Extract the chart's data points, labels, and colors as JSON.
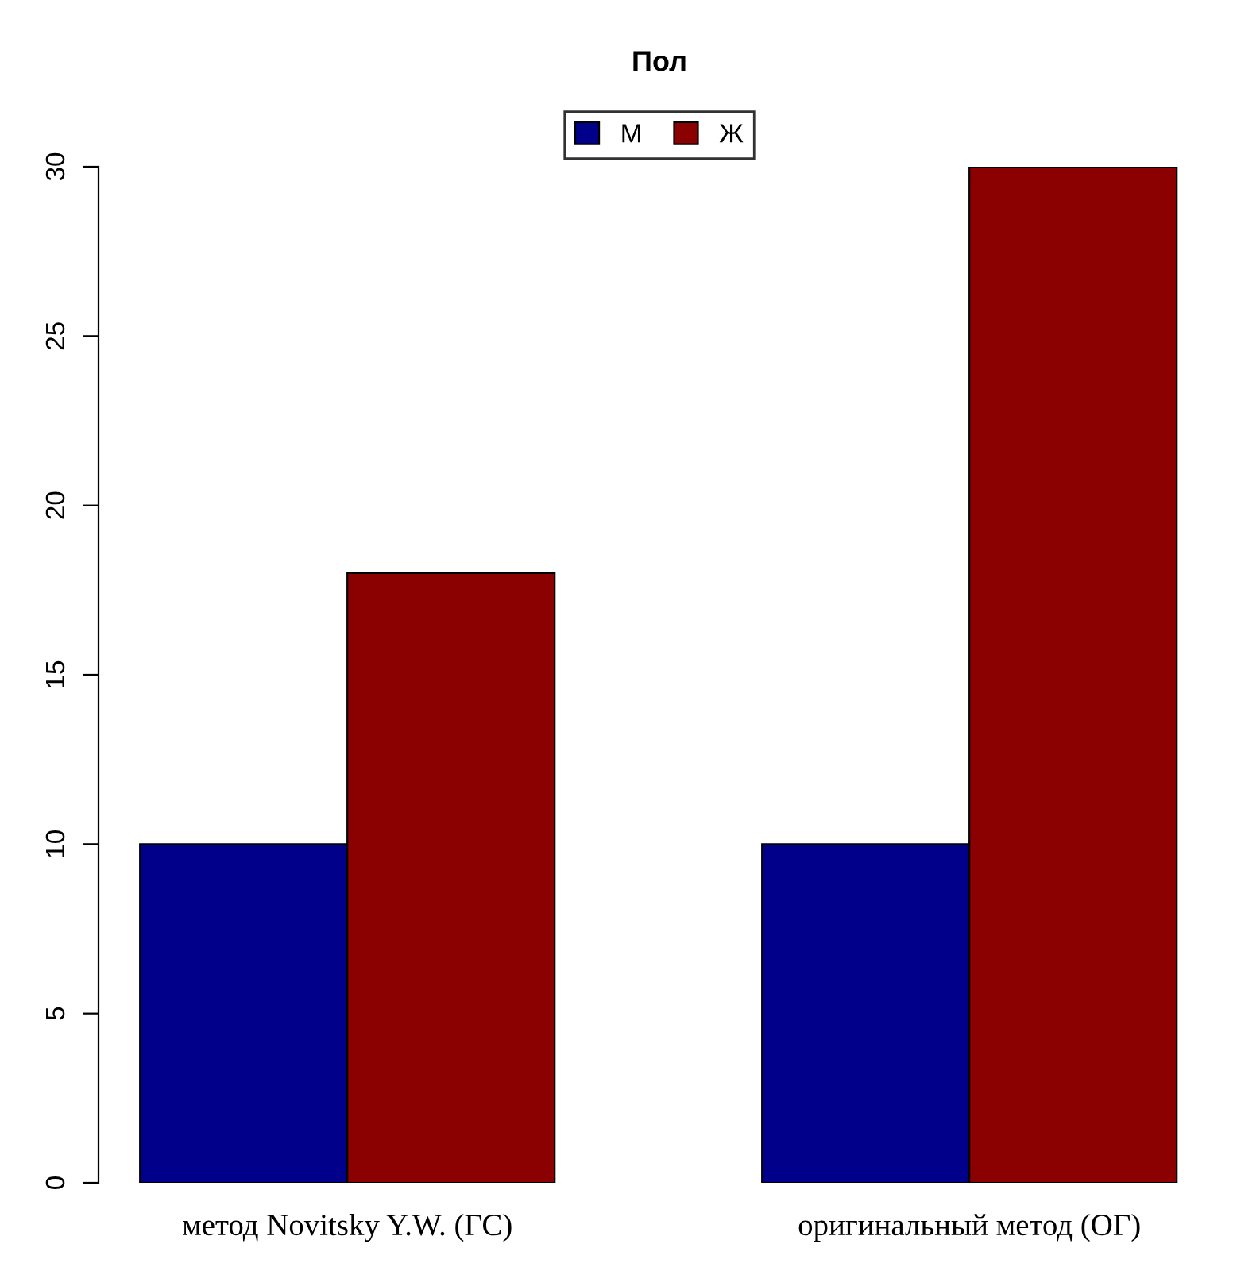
{
  "chart_data": {
    "type": "bar",
    "legend_title": "Пол",
    "legend": "top",
    "categories": [
      "метод Novitsky Y.W. (ГС)",
      "оригинальный метод (ОГ)"
    ],
    "series": [
      {
        "name": "М",
        "color": "#00008b",
        "values": [
          10,
          10
        ]
      },
      {
        "name": "Ж",
        "color": "#8b0000",
        "values": [
          18,
          30
        ]
      }
    ],
    "ylim": [
      0,
      30
    ],
    "yticks": [
      0,
      5,
      10,
      15,
      20,
      25,
      30
    ],
    "grid": false
  }
}
